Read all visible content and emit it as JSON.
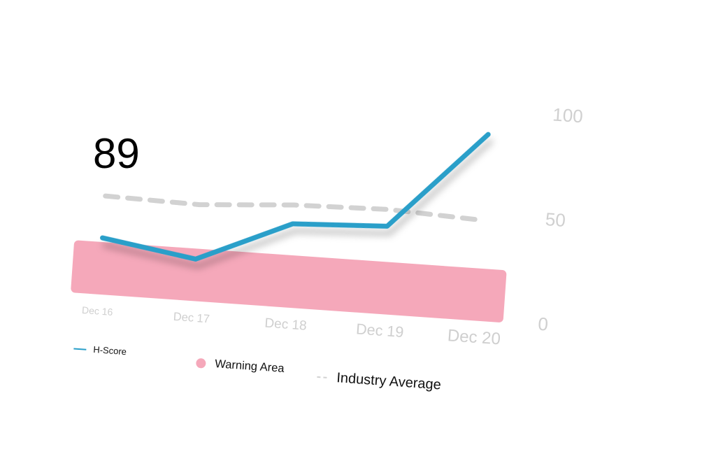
{
  "chart_data": {
    "type": "line",
    "categories": [
      "Dec 16",
      "Dec 17",
      "Dec 18",
      "Dec 19",
      "Dec 20"
    ],
    "series": [
      {
        "name": "H-Score",
        "color": "#2a9fc9",
        "values": [
          27,
          20,
          40,
          42,
          89
        ]
      },
      {
        "name": "Industry Average",
        "color": "#d2d2d2",
        "dashed": true,
        "values": [
          47,
          46,
          49,
          50,
          48
        ]
      }
    ],
    "bands": [
      {
        "name": "Warning Area",
        "color": "#f5a8ba",
        "range": [
          0,
          25
        ]
      }
    ],
    "ylim": [
      0,
      100
    ],
    "yticks": [
      0,
      50,
      100
    ],
    "y_axis_side": "right",
    "grid": false
  }
}
